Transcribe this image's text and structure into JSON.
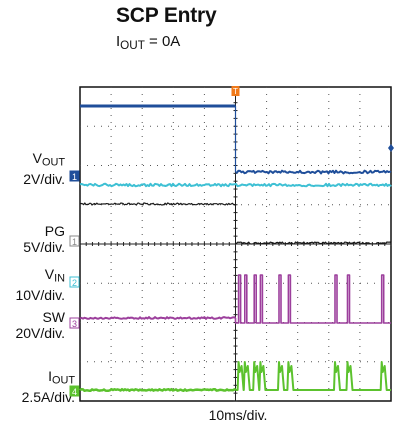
{
  "title": "SCP Entry",
  "subtitle": {
    "main": "I",
    "sub": "OUT",
    "rest": " = 0A"
  },
  "xlabel": "10ms/div.",
  "colors": {
    "ch1": "#1f4e9a",
    "ch2": "#3ec0d4",
    "ch3": "#9c3f9c",
    "ch4": "#5cc22e",
    "pg": "#1a1a1a",
    "trigger": "#f07a1a"
  },
  "channels": [
    {
      "id": "vout",
      "marker": "1",
      "name": "V",
      "sub": "OUT",
      "scale": "2V/div."
    },
    {
      "id": "pg",
      "marker": "1",
      "name": "PG",
      "sub": "",
      "scale": "5V/div."
    },
    {
      "id": "vin",
      "marker": "2",
      "name": "V",
      "sub": "IN",
      "scale": "10V/div."
    },
    {
      "id": "sw",
      "marker": "3",
      "name": "SW",
      "sub": "",
      "scale": "20V/div."
    },
    {
      "id": "iout",
      "marker": "4",
      "name": "I",
      "sub": "OUT",
      "scale": "2.5A/div."
    }
  ],
  "trigger_marker": "T",
  "chart_data": {
    "type": "line",
    "title": "SCP Entry",
    "subtitle": "IOUT = 0A",
    "xlabel": "10ms/div.",
    "x_unit": "ms",
    "xlim": [
      -50,
      50
    ],
    "divisions": {
      "horizontal": 10,
      "vertical": 8
    },
    "grid": true,
    "series": [
      {
        "name": "VOUT",
        "scale": "2V/div.",
        "x": [
          -50,
          0,
          0,
          50
        ],
        "y": [
          5.0,
          5.0,
          0.2,
          0.2
        ]
      },
      {
        "name": "VIN",
        "scale": "10V/div.",
        "x": [
          -50,
          50
        ],
        "y": [
          12,
          12
        ]
      },
      {
        "name": "PG",
        "scale": "5V/div.",
        "x": [
          -50,
          0,
          0,
          50
        ],
        "y": [
          5,
          5,
          0,
          0
        ]
      },
      {
        "name": "SW",
        "scale": "20V/div.",
        "x": [
          -50,
          0,
          0,
          50
        ],
        "y": [
          6,
          6,
          0,
          0
        ],
        "pulses_after_ms": [
          1,
          3,
          6,
          8,
          14,
          17,
          32,
          36,
          47
        ]
      },
      {
        "name": "IOUT",
        "scale": "2.5A/div.",
        "x": [
          -50,
          50
        ],
        "y": [
          0,
          0
        ],
        "pulses_after_ms": [
          1,
          3,
          6,
          8,
          14,
          17,
          32,
          36,
          47
        ]
      }
    ]
  }
}
